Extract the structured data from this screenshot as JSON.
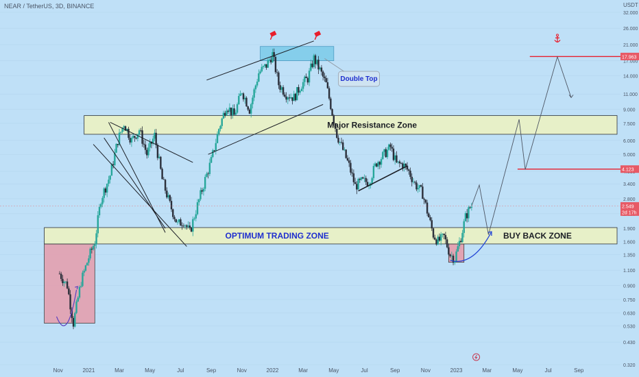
{
  "header": {
    "symbol_text": "NEAR / TetherUS, 3D, BINANCE"
  },
  "axis": {
    "currency": "USDT"
  },
  "colors": {
    "background": "#bfe0f7",
    "up": "#26a69a",
    "down": "#2a2e39",
    "zone_fill": "#e7f0c8",
    "zone_stroke": "#2b2f36",
    "pink_fill": "#e2a3b3",
    "double_top_fill": "#7ccbea",
    "target_red": "#e81e2c",
    "label_blue": "#1f2fcf",
    "arrow_blue": "#2447d6",
    "price_tag": "#e75a66"
  },
  "chart_data": {
    "type": "candlestick",
    "y_scale": "log",
    "ylim": [
      0.32,
      32
    ],
    "y_ticks": [
      "32.000",
      "26.000",
      "21.000",
      "17.000",
      "14.000",
      "11.000",
      "9.000",
      "7.500",
      "6.000",
      "5.000",
      "4.000",
      "3.400",
      "2.800",
      "2.300",
      "1.900",
      "1.600",
      "1.350",
      "1.100",
      "0.900",
      "0.750",
      "0.630",
      "0.530",
      "0.430",
      "0.320"
    ],
    "y_tick_values": [
      32,
      26,
      21,
      17,
      14,
      11,
      9,
      7.5,
      6,
      5,
      4,
      3.4,
      2.8,
      2.3,
      1.9,
      1.6,
      1.35,
      1.1,
      0.9,
      0.75,
      0.63,
      0.53,
      0.43,
      0.32
    ],
    "x_ticks": [
      "Nov",
      "2021",
      "Mar",
      "May",
      "Jul",
      "Sep",
      "Nov",
      "2022",
      "Mar",
      "May",
      "Jul",
      "Sep",
      "Nov",
      "2023",
      "Mar",
      "May",
      "Jul",
      "Sep"
    ],
    "x_tick_positions": [
      0,
      2,
      4,
      6,
      8,
      10,
      12,
      14,
      16,
      18,
      20,
      22,
      24,
      26,
      28,
      30,
      32,
      34
    ],
    "x_range_months": [
      -0.3,
      35.6
    ],
    "current_price": {
      "value": 2.549,
      "label": "2.549",
      "countdown": "2d 17h"
    },
    "targets": [
      {
        "value": 17.963,
        "label": "17.963"
      },
      {
        "value": 4.123,
        "label": "4.123"
      }
    ],
    "key_points": [
      [
        0.1,
        1.05
      ],
      [
        0.6,
        0.9
      ],
      [
        1.0,
        0.55
      ],
      [
        1.5,
        0.95
      ],
      [
        2.0,
        1.3
      ],
      [
        2.4,
        1.6
      ],
      [
        2.8,
        2.8
      ],
      [
        3.4,
        3.8
      ],
      [
        3.9,
        6.0
      ],
      [
        4.3,
        7.5
      ],
      [
        4.8,
        6.0
      ],
      [
        5.3,
        6.9
      ],
      [
        5.8,
        5.0
      ],
      [
        6.3,
        6.4
      ],
      [
        6.8,
        3.6
      ],
      [
        7.3,
        2.6
      ],
      [
        7.8,
        2.0
      ],
      [
        8.2,
        2.1
      ],
      [
        8.6,
        1.8
      ],
      [
        9.0,
        2.4
      ],
      [
        9.6,
        3.6
      ],
      [
        10.0,
        4.6
      ],
      [
        10.5,
        7.0
      ],
      [
        11.0,
        9.5
      ],
      [
        11.5,
        8.3
      ],
      [
        12.0,
        11.5
      ],
      [
        12.5,
        9.0
      ],
      [
        13.1,
        14.5
      ],
      [
        13.6,
        16.0
      ],
      [
        14.0,
        18.5
      ],
      [
        14.4,
        12.5
      ],
      [
        14.9,
        11.0
      ],
      [
        15.4,
        10.5
      ],
      [
        15.9,
        12.5
      ],
      [
        16.3,
        13.5
      ],
      [
        16.7,
        17.5
      ],
      [
        17.1,
        15.0
      ],
      [
        17.5,
        12.5
      ],
      [
        17.8,
        9.5
      ],
      [
        18.2,
        6.5
      ],
      [
        18.6,
        5.3
      ],
      [
        19.0,
        4.3
      ],
      [
        19.4,
        3.3
      ],
      [
        19.8,
        3.5
      ],
      [
        20.3,
        3.5
      ],
      [
        20.8,
        4.5
      ],
      [
        21.2,
        4.9
      ],
      [
        21.7,
        5.5
      ],
      [
        22.1,
        4.4
      ],
      [
        22.5,
        4.4
      ],
      [
        22.9,
        4.0
      ],
      [
        23.3,
        3.4
      ],
      [
        23.8,
        3.0
      ],
      [
        24.2,
        2.2
      ],
      [
        24.5,
        1.75
      ],
      [
        24.8,
        1.6
      ],
      [
        25.2,
        1.7
      ],
      [
        25.6,
        1.35
      ],
      [
        25.9,
        1.28
      ],
      [
        26.3,
        1.7
      ],
      [
        26.6,
        2.2
      ],
      [
        26.9,
        2.5
      ],
      [
        27.0,
        2.549
      ]
    ],
    "zones": [
      {
        "label": "Major Resistance Zone",
        "from": 6.5,
        "to": 8.3
      },
      {
        "label": "OPTIMUM TRADING ZONE",
        "from": 1.55,
        "to": 1.92
      },
      {
        "label": "BUY BACK ZONE"
      }
    ],
    "annotations": [
      "Double Top"
    ]
  }
}
